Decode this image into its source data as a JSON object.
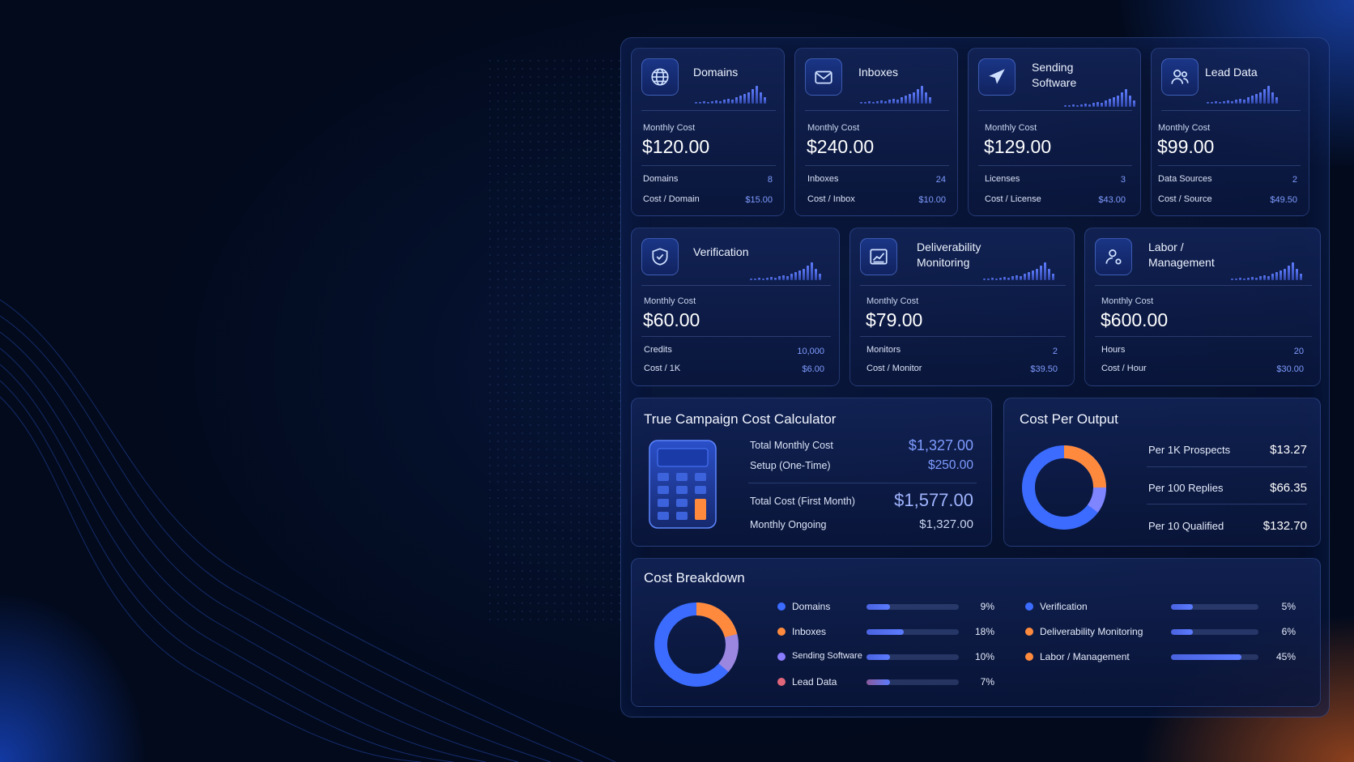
{
  "cards": [
    {
      "title": "Domains",
      "icon": "globe-icon",
      "cost_label": "Monthly Cost",
      "cost": "$120.00",
      "row1_label": "Domains",
      "row1_value": "8",
      "row2_label": "Cost / Domain",
      "row2_value": "$15.00"
    },
    {
      "title": "Inboxes",
      "icon": "mail-icon",
      "cost_label": "Monthly Cost",
      "cost": "$240.00",
      "row1_label": "Inboxes",
      "row1_value": "24",
      "row2_label": "Cost / Inbox",
      "row2_value": "$10.00"
    },
    {
      "title": "Sending Software",
      "icon": "paper-plane-icon",
      "cost_label": "Monthly Cost",
      "cost": "$129.00",
      "row1_label": "Licenses",
      "row1_value": "3",
      "row2_label": "Cost / License",
      "row2_value": "$43.00"
    },
    {
      "title": "Lead Data",
      "icon": "users-icon",
      "cost_label": "Monthly Cost",
      "cost": "$99.00",
      "row1_label": "Data Sources",
      "row1_value": "2",
      "row2_label": "Cost / Source",
      "row2_value": "$49.50"
    },
    {
      "title": "Verification",
      "icon": "shield-check-icon",
      "cost_label": "Monthly Cost",
      "cost": "$60.00",
      "row1_label": "Credits",
      "row1_value": "10,000",
      "row2_label": "Cost / 1K",
      "row2_value": "$6.00"
    },
    {
      "title": "Deliverability Monitoring",
      "icon": "trend-chart-icon",
      "cost_label": "Monthly Cost",
      "cost": "$79.00",
      "row1_label": "Monitors",
      "row1_value": "2",
      "row2_label": "Cost / Monitor",
      "row2_value": "$39.50"
    },
    {
      "title": "Labor / Management",
      "icon": "user-gear-icon",
      "cost_label": "Monthly Cost",
      "cost": "$600.00",
      "row1_label": "Hours",
      "row1_value": "20",
      "row2_label": "Cost / Hour",
      "row2_value": "$30.00"
    }
  ],
  "calculator": {
    "title": "True Campaign Cost Calculator",
    "icon": "calculator-icon",
    "rows": [
      {
        "label": "Total Monthly Cost",
        "value": "$1,327.00"
      },
      {
        "label": "Setup (One-Time)",
        "value": "$250.00"
      },
      {
        "label": "Total Cost (First Month)",
        "value": "$1,577.00"
      },
      {
        "label": "Monthly Ongoing",
        "value": "$1,327.00"
      }
    ]
  },
  "cost_per_output": {
    "title": "Cost Per Output",
    "rows": [
      {
        "label": "Per 1K Prospects",
        "value": "$13.27"
      },
      {
        "label": "Per 100 Replies",
        "value": "$66.35"
      },
      {
        "label": "Per 10 Qualified",
        "value": "$132.70"
      }
    ]
  },
  "breakdown": {
    "title": "Cost Breakdown",
    "items": [
      {
        "label": "Domains",
        "pct_label": "9%",
        "pct": 9,
        "color": "#3b6cff"
      },
      {
        "label": "Inboxes",
        "pct_label": "18%",
        "pct": 18,
        "color": "#ff8a3d"
      },
      {
        "label": "Sending Software",
        "pct_label": "10%",
        "pct": 10,
        "color": "#8a7cff"
      },
      {
        "label": "Lead Data",
        "pct_label": "7%",
        "pct": 7,
        "color": "#e0677a"
      },
      {
        "label": "Verification",
        "pct_label": "5%",
        "pct": 5,
        "color": "#3b6cff"
      },
      {
        "label": "Deliverability Monitoring",
        "pct_label": "6%",
        "pct": 6,
        "color": "#ff8a3d"
      },
      {
        "label": "Labor / Management",
        "pct_label": "45%",
        "pct": 45,
        "color": "#ff8a3d"
      }
    ]
  },
  "colors": {
    "accent": "#7f9cff",
    "orange": "#ff8a3d",
    "blue": "#3b6cff"
  }
}
